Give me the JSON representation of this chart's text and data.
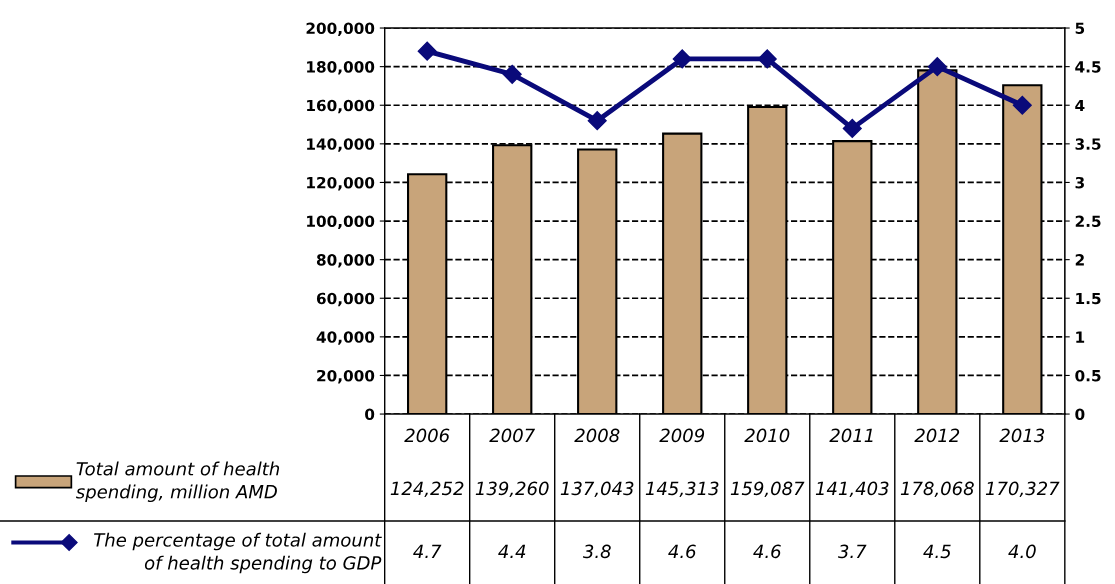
{
  "chart_data": {
    "type": "bar",
    "categories": [
      "2006",
      "2007",
      "2008",
      "2009",
      "2010",
      "2011",
      "2012",
      "2013"
    ],
    "series": [
      {
        "name": "Total amount of health\nspending, million AMD",
        "color": "#c8a47a",
        "values": [
          124252,
          139260,
          137043,
          145313,
          159087,
          141403,
          178068,
          170327
        ],
        "value_labels": [
          "124,252",
          "139,260",
          "137,043",
          "145,313",
          "159,087",
          "141,403",
          "178,068",
          "170,327"
        ]
      },
      {
        "name": "The percentage of total amount\nof health spending to GDP",
        "type": "line",
        "axis": "y2",
        "color": "#0a0a7a",
        "marker": "diamond",
        "values": [
          4.7,
          4.4,
          3.8,
          4.6,
          4.6,
          3.7,
          4.5,
          4.0
        ],
        "value_labels": [
          "4.7",
          "4.4",
          "3.8",
          "4.6",
          "4.6",
          "3.7",
          "4.5",
          "4.0"
        ]
      }
    ],
    "ylim": [
      0,
      200000
    ],
    "yticks": [
      {
        "value": 0,
        "label": "0"
      },
      {
        "value": 20000,
        "label": "20,000"
      },
      {
        "value": 40000,
        "label": "40,000"
      },
      {
        "value": 60000,
        "label": "60,000"
      },
      {
        "value": 80000,
        "label": "80,000"
      },
      {
        "value": 100000,
        "label": "100,000"
      },
      {
        "value": 120000,
        "label": "120,000"
      },
      {
        "value": 140000,
        "label": "140,000"
      },
      {
        "value": 160000,
        "label": "160,000"
      },
      {
        "value": 180000,
        "label": "180,000"
      },
      {
        "value": 200000,
        "label": "200,000"
      }
    ],
    "y2lim": [
      0,
      5
    ],
    "y2ticks": [
      0,
      0.5,
      1,
      1.5,
      2,
      2.5,
      3,
      3.5,
      4,
      4.5,
      5
    ],
    "grid": "y",
    "legend": "bottom"
  }
}
